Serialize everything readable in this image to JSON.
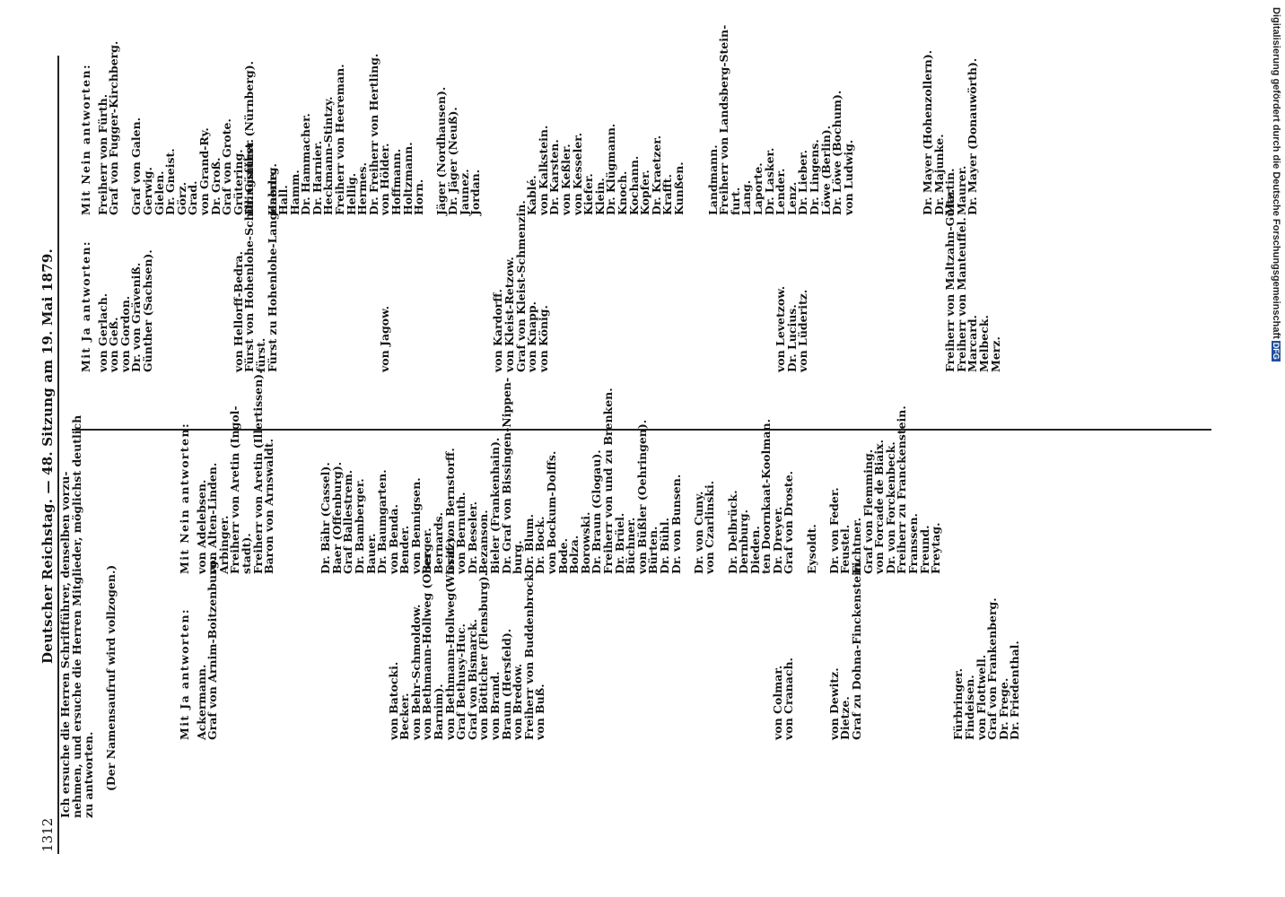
{
  "running_head": {
    "page_number": "1312",
    "title": "Deutscher Reichstag. — 48. Sitzung am 19. Mai 1879."
  },
  "intro": {
    "lines": [
      "Ich ersuche die Herren Schriftführer, denselben vorzu-",
      "nehmen, und ersuche die Herren Mitglieder, möglichst deutlich",
      "zu antworten."
    ],
    "note": "(Der Namensaufruf wird vollzogen.)"
  },
  "credit": {
    "text": "Digitalisierung gefördert durch die Deutsche Forschungsgemeinschaft",
    "badge": "DFG"
  },
  "columns": [
    {
      "heading": "Mit Ja antworten:",
      "names": [
        "Ackermann.",
        "Graf von Arnim-Boitzenburg.",
        "",
        "",
        "",
        "",
        "",
        "",
        "",
        "",
        "",
        "",
        "",
        "",
        "",
        "",
        "",
        "von Batocki.",
        "Becker.",
        "von Behr-Schmoldow.",
        "von Bethmann-Hollweg (Ober-",
        "Barnim).",
        "von Bethmann-Hollweg(Wirsitz).",
        "Graf Bethusy-Huc.",
        "Graf von Bismarck.",
        "von Bötticher (Flensburg).",
        "von Brand.",
        "Braun (Hersfeld).",
        "von Bredow.",
        "Freiherr von Buddenbrock.",
        "von Buß.",
        "",
        "",
        "",
        "",
        "",
        "",
        "",
        "",
        "",
        "",
        "",
        "",
        "",
        "",
        "",
        "",
        "",
        "",
        "",
        "",
        "von Colmar.",
        "von Cranach.",
        "",
        "",
        "",
        "von Dewitz.",
        "Dietze.",
        "Graf zu Dohna-Finckenstein.",
        "",
        "",
        "",
        "",
        "",
        "",
        "",
        "",
        "Fürbringer.",
        "Findeisen.",
        "von Flottwell.",
        "Graf von Frankenberg.",
        "Dr. Frege.",
        "Dr. Friedenthal."
      ]
    },
    {
      "heading": "Mit Nein antworten:",
      "names": [
        "von Adelebsen.",
        "von Alten-Linden.",
        "Arbinger.",
        "Freiherr von Aretin (Ingol-",
        "stadt).",
        "Freiherr von Aretin (Illertissen).",
        "Baron von Arnswaldt.",
        "",
        "",
        "",
        "",
        "Dr. Bähr (Cassel).",
        "Baer (Offenburg).",
        "Graf Ballestrem.",
        "Dr. Bamberger.",
        "Bauer.",
        "Dr. Baumgarten.",
        "von Benda.",
        "Bender.",
        "von Bennigsen.",
        "Berger.",
        "Bernards.",
        "Graf von Bernstorff.",
        "von Bernuth.",
        "Dr. Beseler.",
        "Bezanson.",
        "Bieler (Frankenhain).",
        "Dr. Graf von Bissingen-Nippen-",
        "burg.",
        "Dr. Blum.",
        "Dr. Bock.",
        "von Bockum-Dolffs.",
        "Bode.",
        "Bolza.",
        "Borowski.",
        "Dr. Braun (Glogau).",
        "Freiherr von und zu Brenken.",
        "Dr. Brüel.",
        "Büchner.",
        "von Büßler (Oehringen).",
        "Bürten.",
        "Dr. Bühl.",
        "Dr. von Bunsen.",
        "",
        "Dr. von Cuny.",
        "von Czarlinski.",
        "",
        "Dr. Delbrück.",
        "Dernburg.",
        "Dieden.",
        "ten Doornkaat-Koolman.",
        "Dr. Dreyer.",
        "Graf von Droste.",
        "",
        "Eysoldt.",
        "",
        "Dr. von Feder.",
        "Feustel.",
        "Fichtner.",
        "Graf von Flemming.",
        "von Forcade de Biaix.",
        "Dr. von Forckenbeck.",
        "Freiherr zu Franckenstein.",
        "Franssen.",
        "Freund.",
        "Freytag."
      ]
    },
    {
      "heading": "Mit Ja antworten:",
      "names": [
        "von Gerlach.",
        "von Geß.",
        "von Gordon.",
        "Dr. von Gräveniß.",
        "Günther (Sachsen).",
        "",
        "",
        "",
        "",
        "",
        "",
        "",
        "von Hellorff-Bedra.",
        "Fürst von Hohenlohe-Schillingsfürst.",
        "fürst.",
        "Fürst zu Hohenlohe-Langenburg.",
        "",
        "",
        "",
        "",
        "",
        "",
        "",
        "",
        "",
        "von Jagow.",
        "",
        "",
        "",
        "",
        "",
        "",
        "",
        "",
        "",
        "von Kardorff.",
        "von Kleist-Retzow.",
        "Graf von Kleist-Schmenzin.",
        "von Knapp.",
        "von König.",
        "",
        "",
        "",
        "",
        "",
        "",
        "",
        "",
        "",
        "",
        "",
        "",
        "",
        "",
        "",
        "",
        "",
        "",
        "",
        "",
        "von Levetzow.",
        "Dr. Lucius.",
        "von Lüderitz.",
        "",
        "",
        "",
        "",
        "",
        "",
        "",
        "",
        "",
        "",
        "",
        "",
        "Freiherr von Maltzahn-Gültz.",
        "Freiherr von Manteuffel.",
        "Marcard.",
        "Melbeck.",
        "Merz."
      ]
    },
    {
      "heading": "Mit Nein antworten:",
      "names": [
        "Freiherr von Fürth.",
        "Graf von Fugger-Kirchberg.",
        "",
        "Graf von Galen.",
        "Gerwig.",
        "Gielen.",
        "Dr. Gneist.",
        "Görz.",
        "Grad.",
        "von Grand-Ry.",
        "Dr. Groß.",
        "Graf von Grote.",
        "Grütering.",
        "Dr. Günther (Nürnberg).",
        "",
        "Haerle.",
        "Hall.",
        "Hamm.",
        "Dr. Hammacher.",
        "Dr. Harnier.",
        "Heckmann-Stintzy.",
        "Freiherr von Heereman.",
        "Hellig.",
        "Hermes.",
        "Dr. Freiherr von Hertling.",
        "von Hölder.",
        "Hoffmann.",
        "Holtzmann.",
        "Horn.",
        "",
        "Jäger (Nordhausen).",
        "Dr. Jäger (Neuß).",
        "Jaunez.",
        "Jordan.",
        "",
        "",
        "",
        "",
        "Kablé.",
        "von Kalkstein.",
        "Dr. Karsten.",
        "von Keßler.",
        "von Kesseler.",
        "Kiefer.",
        "Klein.",
        "Dr. Klügmann.",
        "Knoch.",
        "Kochann.",
        "Kopfer.",
        "Dr. Kraetzer.",
        "Krafft.",
        "Kunßen.",
        "",
        "",
        "Landmann.",
        "Freiherr von Landsberg-Stein-",
        "furt.",
        "Lang.",
        "Laporte.",
        "Dr. Lasker.",
        "Lender.",
        "Lenz.",
        "Dr. Lieber.",
        "Dr. Lingens.",
        "Löwe (Berlin).",
        "Dr. Löwe (Bochum).",
        "von Ludwig.",
        "",
        "",
        "",
        "",
        "",
        "",
        "Dr. Mayer (Hohenzollern).",
        "Dr. Majunke.",
        "Martin.",
        "Maurer.",
        "Dr. Mayer (Donauwörth)."
      ]
    }
  ]
}
